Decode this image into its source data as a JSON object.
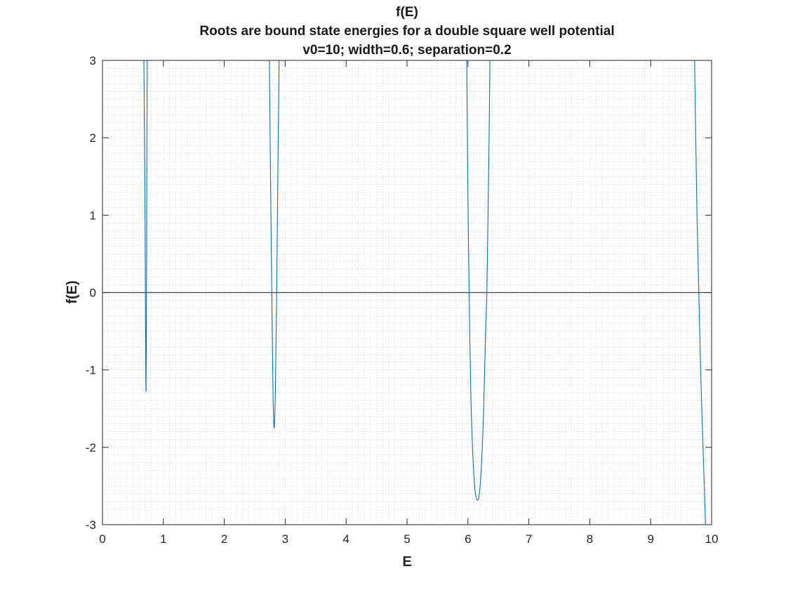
{
  "chart_data": {
    "type": "line",
    "title": [
      "f(E)",
      "Roots are bound state energies for a double square well potential",
      "v0=10; width=0.6; separation=0.2"
    ],
    "xlabel": "E",
    "ylabel": "f(E)",
    "xlim": [
      0,
      10
    ],
    "ylim": [
      -3,
      3
    ],
    "xticks": [
      0,
      1,
      2,
      3,
      4,
      5,
      6,
      7,
      8,
      9,
      10
    ],
    "yticks": [
      -3,
      -2,
      -1,
      0,
      1,
      2,
      3
    ],
    "grid": "minor-dotted",
    "zero_line": true,
    "colors": {
      "series": "#0072bd",
      "zero_line": "#404040",
      "grid": "#c8c8c8",
      "axes": "#262626"
    },
    "series": [
      {
        "values_note": "",
        "segments": [
          [
            [
              0.68,
              3.0
            ],
            [
              0.69,
              2.0
            ],
            [
              0.7,
              0.9
            ],
            [
              0.705,
              0.0
            ],
            [
              0.71,
              -0.9
            ],
            [
              0.715,
              -1.27
            ],
            [
              0.72,
              -0.6
            ],
            [
              0.725,
              0.5
            ],
            [
              0.73,
              2.0
            ],
            [
              0.735,
              3.0
            ]
          ],
          [
            [
              2.74,
              3.0
            ],
            [
              2.76,
              1.4
            ],
            [
              2.78,
              0.0
            ],
            [
              2.8,
              -1.3
            ],
            [
              2.82,
              -1.75
            ],
            [
              2.84,
              -1.2
            ],
            [
              2.86,
              0.0
            ],
            [
              2.88,
              1.6
            ],
            [
              2.9,
              3.0
            ]
          ],
          [
            [
              5.98,
              3.0
            ],
            [
              6.0,
              1.2
            ],
            [
              6.02,
              0.0
            ],
            [
              6.05,
              -1.4
            ],
            [
              6.1,
              -2.4
            ],
            [
              6.15,
              -2.68
            ],
            [
              6.2,
              -2.5
            ],
            [
              6.25,
              -1.7
            ],
            [
              6.29,
              -0.5
            ],
            [
              6.31,
              0.0
            ],
            [
              6.33,
              1.0
            ],
            [
              6.35,
              2.2
            ],
            [
              6.36,
              3.0
            ]
          ],
          [
            [
              9.72,
              3.0
            ],
            [
              9.74,
              2.0
            ],
            [
              9.76,
              1.0
            ],
            [
              9.79,
              0.0
            ],
            [
              9.82,
              -1.0
            ],
            [
              9.85,
              -1.8
            ],
            [
              9.88,
              -2.5
            ],
            [
              9.9,
              -3.0
            ]
          ]
        ]
      }
    ]
  }
}
